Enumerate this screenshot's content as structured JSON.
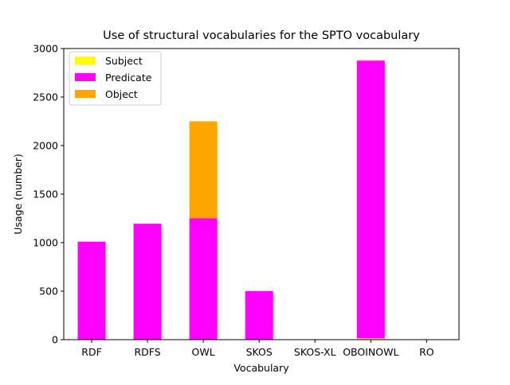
{
  "chart_data": {
    "type": "bar",
    "stacked": true,
    "title": "Use of structural vocabularies for the SPTO vocabulary",
    "xlabel": "Vocabulary",
    "ylabel": "Usage (number)",
    "categories": [
      "RDF",
      "RDFS",
      "OWL",
      "SKOS",
      "SKOS-XL",
      "OBOINOWL",
      "RO"
    ],
    "ylim": [
      0,
      3000
    ],
    "yticks": [
      0,
      500,
      1000,
      1500,
      2000,
      2500,
      3000
    ],
    "legend_position": "top-left",
    "grid": false,
    "series": [
      {
        "name": "Subject",
        "color": "#ffff00",
        "values": [
          0,
          0,
          0,
          0,
          0,
          15,
          0
        ]
      },
      {
        "name": "Predicate",
        "color": "#ff00ff",
        "values": [
          1010,
          1195,
          1250,
          500,
          0,
          2860,
          0
        ]
      },
      {
        "name": "Object",
        "color": "#ffa500",
        "values": [
          0,
          0,
          1000,
          0,
          0,
          5,
          0
        ]
      }
    ]
  }
}
